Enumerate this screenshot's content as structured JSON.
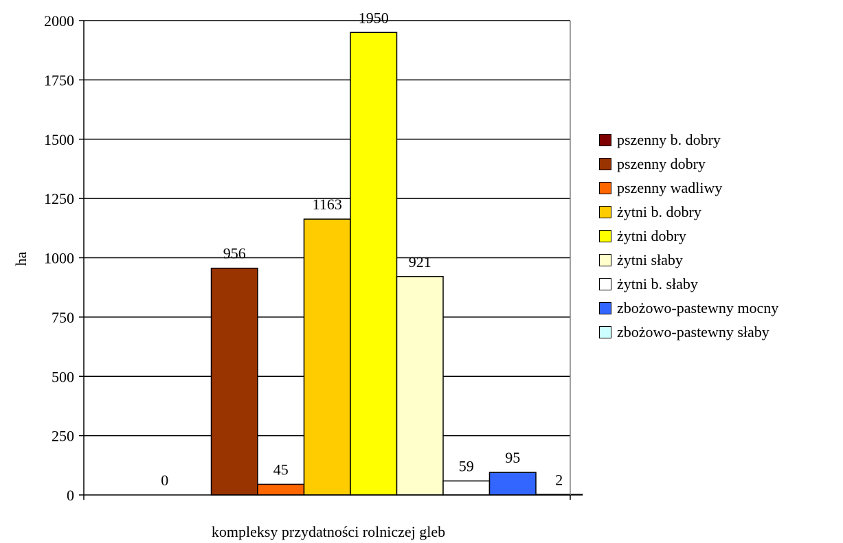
{
  "chart_data": {
    "type": "bar",
    "title": "",
    "xlabel": "kompleksy przydatności rolniczej gleb",
    "ylabel": "ha",
    "ylim": [
      0,
      2000
    ],
    "yticks": [
      0,
      250,
      500,
      750,
      1000,
      1250,
      1500,
      1750,
      2000
    ],
    "grid": true,
    "legend_position": "right",
    "series": [
      {
        "name": "pszenny b. dobry",
        "value": 0,
        "color": "#7f0000"
      },
      {
        "name": "pszenny dobry",
        "value": 956,
        "color": "#993300"
      },
      {
        "name": "pszenny wadliwy",
        "value": 45,
        "color": "#ff6600"
      },
      {
        "name": "żytni b. dobry",
        "value": 1163,
        "color": "#ffcc00"
      },
      {
        "name": "żytni dobry",
        "value": 1950,
        "color": "#ffff00"
      },
      {
        "name": "żytni słaby",
        "value": 921,
        "color": "#ffffcc"
      },
      {
        "name": "żytni b. słaby",
        "value": 59,
        "color": "#ffffff"
      },
      {
        "name": "zbożowo-pastewny mocny",
        "value": 95,
        "color": "#3366ff"
      },
      {
        "name": "zbożowo-pastewny słaby",
        "value": 2,
        "color": "#ccffff"
      }
    ]
  }
}
